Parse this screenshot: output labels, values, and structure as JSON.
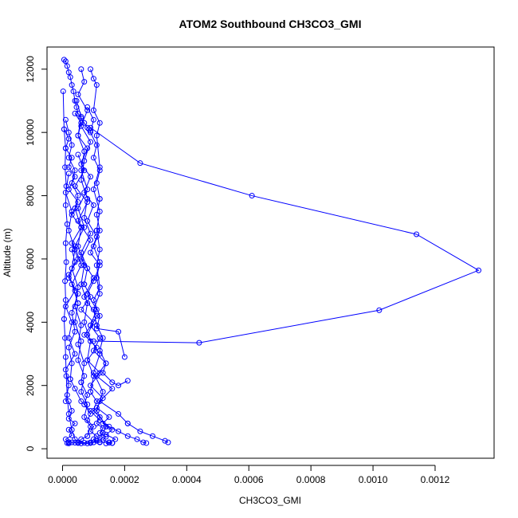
{
  "chart_data": {
    "type": "line",
    "title": "ATOM2 Southbound CH3CO3_GMI",
    "xlabel": "CH3CO3_GMI",
    "ylabel": "Altitude (m)",
    "xlim": [
      -5e-05,
      0.00139
    ],
    "ylim": [
      -300,
      12700
    ],
    "x_ticks": [
      0.0,
      0.0002,
      0.0004,
      0.0006,
      0.0008,
      0.001,
      0.0012
    ],
    "x_tick_labels": [
      "0.0000",
      "0.0002",
      "0.0004",
      "0.0006",
      "0.0008",
      "0.0010",
      "0.0012"
    ],
    "y_ticks": [
      0,
      2000,
      4000,
      6000,
      8000,
      10000,
      12000
    ],
    "y_tick_labels": [
      "0",
      "2000",
      "4000",
      "6000",
      "8000",
      "10000",
      "12000"
    ],
    "color": "#0000ff",
    "marker": "open-circle",
    "grid": false,
    "series": [
      {
        "x": [
          5e-06,
          1e-05,
          1.5e-05,
          2e-05,
          2.5e-05,
          3e-05,
          3.5e-05,
          4e-05,
          4.5e-05,
          5e-05,
          6e-05,
          7e-05,
          8e-05,
          8.5e-05,
          9e-05
        ],
        "y": [
          12300,
          12250,
          12100,
          11900,
          11750,
          11500,
          11300,
          11000,
          10800,
          10600,
          10450,
          10300,
          10150,
          10100,
          10050
        ]
      },
      {
        "x": [
          9e-05,
          0.00025,
          0.00061,
          0.00114,
          0.00134,
          0.00102,
          0.00044,
          0.0001
        ],
        "y": [
          10150,
          9030,
          8000,
          6780,
          5640,
          4380,
          3350,
          3400
        ]
      },
      {
        "x": [
          5e-06,
          2e-05,
          1e-05,
          3e-05,
          2e-05,
          4e-05,
          2e-05,
          5e-05,
          3e-05,
          6e-05,
          3e-05,
          5e-05,
          2e-05,
          4e-05,
          1e-05,
          3e-05,
          2e-05,
          4e-05,
          1e-05,
          2e-05,
          1e-05
        ],
        "y": [
          10100,
          9800,
          9500,
          9200,
          8900,
          8600,
          8200,
          7800,
          7400,
          7000,
          6500,
          6000,
          5500,
          5000,
          4500,
          4000,
          3500,
          3000,
          2500,
          2000,
          1500
        ]
      },
      {
        "x": [
          2e-05,
          3e-05,
          2e-05,
          4e-05,
          2e-05,
          3e-05,
          1e-05,
          2e-05,
          1.5e-05,
          2e-05
        ],
        "y": [
          1500,
          1200,
          950,
          800,
          600,
          420,
          300,
          200,
          180,
          170
        ]
      },
      {
        "x": [
          4e-05,
          6e-05,
          5e-05,
          8e-05,
          6e-05,
          9e-05,
          7e-05,
          0.0001,
          8e-05,
          0.00011,
          9e-05,
          0.00012,
          0.0001,
          8e-05,
          0.00011,
          9e-05
        ],
        "y": [
          10600,
          10300,
          9900,
          9500,
          9000,
          8600,
          8100,
          7700,
          7200,
          6700,
          6200,
          5800,
          5300,
          4900,
          4400,
          3900
        ]
      },
      {
        "x": [
          9e-05,
          0.00012,
          0.0001,
          0.00014,
          0.00011,
          0.00016,
          0.00012,
          0.00018,
          0.00021
        ],
        "y": [
          3900,
          3500,
          3100,
          2700,
          2300,
          1900,
          1500,
          1100,
          800
        ]
      },
      {
        "x": [
          0.00021,
          0.00025,
          0.00029,
          0.00033,
          0.00034
        ],
        "y": [
          800,
          550,
          400,
          250,
          200
        ]
      },
      {
        "x": [
          6e-05,
          7e-05,
          5e-05,
          8e-05,
          6e-05,
          9e-05,
          7e-05,
          6e-05,
          8e-05,
          7e-05,
          9e-05,
          6e-05,
          8e-05,
          7e-05
        ],
        "y": [
          12000,
          11600,
          11200,
          10700,
          10200,
          9700,
          9100,
          8500,
          7900,
          7300,
          6800,
          6200,
          5700,
          5200
        ]
      },
      {
        "x": [
          7e-05,
          9e-05,
          6e-05,
          0.0001,
          7e-05,
          0.00011,
          8e-05,
          0.00012,
          9e-05,
          0.00013,
          0.00011,
          0.00015,
          0.00013,
          0.00016,
          0.00014,
          0.00017,
          0.00015,
          0.00016,
          0.00014
        ],
        "y": [
          5200,
          4800,
          4400,
          4000,
          3600,
          3200,
          2800,
          2400,
          2000,
          1600,
          1300,
          1000,
          800,
          600,
          450,
          300,
          200,
          180,
          170
        ]
      },
      {
        "x": [
          9e-05,
          0.0001,
          0.00011,
          0.0001,
          0.00012,
          0.00011,
          0.00012,
          0.0001,
          0.00012,
          0.00011
        ],
        "y": [
          12000,
          11700,
          11500,
          10700,
          10300,
          9900,
          8900,
          8200,
          7500,
          6900
        ]
      },
      {
        "x": [
          0.00011,
          0.00012,
          0.00011,
          0.00012,
          0.0001,
          0.00012,
          0.00011,
          0.00018,
          0.0002
        ],
        "y": [
          6900,
          6300,
          5800,
          5100,
          4700,
          4200,
          3800,
          3700,
          2900
        ]
      },
      {
        "x": [
          3e-05,
          4e-05,
          2e-05,
          5e-05,
          3e-05,
          4e-05,
          2e-05,
          3e-05,
          2.5e-05
        ],
        "y": [
          6300,
          5900,
          5400,
          4900,
          4300,
          3700,
          3200,
          2700,
          2200
        ]
      },
      {
        "x": [
          2.5e-05,
          4e-05,
          6e-05,
          9e-05,
          0.00012,
          0.00015,
          0.00018,
          0.00021,
          0.00024,
          0.00026,
          0.00027
        ],
        "y": [
          2200,
          1900,
          1500,
          1200,
          900,
          700,
          550,
          400,
          300,
          200,
          180
        ]
      },
      {
        "x": [
          5e-05,
          7e-05,
          4e-05,
          8e-05,
          5e-05,
          9e-05,
          6e-05,
          0.0001,
          7e-05,
          0.00011,
          8e-05,
          0.00012,
          0.0001,
          0.00013,
          0.00011,
          0.00014
        ],
        "y": [
          9300,
          8800,
          8300,
          7800,
          7200,
          6600,
          6000,
          5400,
          4800,
          4200,
          3600,
          3000,
          2400,
          1800,
          1200,
          700
        ]
      },
      {
        "x": [
          0.00014,
          0.00013,
          0.00012,
          0.00011,
          0.0001,
          9e-05,
          8e-05,
          6e-05,
          5e-05,
          4e-05,
          3e-05,
          2e-05
        ],
        "y": [
          700,
          500,
          350,
          250,
          200,
          180,
          170,
          170,
          180,
          190,
          200,
          210
        ]
      },
      {
        "x": [
          2e-05,
          1e-05,
          3e-05,
          2e-05,
          4e-05,
          3e-05,
          5e-05,
          4e-05,
          6e-05,
          5e-05,
          7e-05,
          6e-05
        ],
        "y": [
          8700,
          8100,
          7500,
          6900,
          6300,
          5700,
          5100,
          4500,
          3900,
          3300,
          2700,
          2100
        ]
      },
      {
        "x": [
          6e-05,
          8e-05,
          7e-05,
          9e-05,
          8e-05,
          0.0001,
          9e-05,
          0.00011,
          0.0001,
          0.00012
        ],
        "y": [
          2100,
          1700,
          1400,
          1100,
          900,
          700,
          550,
          400,
          300,
          200
        ]
      },
      {
        "x": [
          1e-05,
          2e-05,
          3e-05,
          2e-05,
          4e-05,
          3e-05,
          5e-05,
          4e-05
        ],
        "y": [
          10400,
          10000,
          9600,
          9200,
          8800,
          8400,
          8000,
          7600
        ]
      },
      {
        "x": [
          4e-05,
          6e-05,
          5e-05,
          7e-05,
          6e-05,
          8e-05,
          7e-05,
          9e-05,
          8e-05,
          0.0001,
          9e-05
        ],
        "y": [
          7600,
          7000,
          6400,
          5800,
          5200,
          4600,
          4000,
          3400,
          2800,
          2300,
          1800
        ]
      },
      {
        "x": [
          9e-05,
          0.00011,
          0.0001,
          0.00012,
          0.00011,
          0.00013,
          0.00012,
          0.00014,
          0.00013,
          0.00015,
          0.00016
        ],
        "y": [
          1800,
          1500,
          1200,
          1000,
          800,
          650,
          500,
          380,
          280,
          200,
          180
        ]
      },
      {
        "x": [
          8e-05,
          0.0001,
          9e-05,
          0.00011,
          0.0001,
          0.00012,
          0.00011,
          0.00012
        ],
        "y": [
          10800,
          10400,
          10000,
          9600,
          9200,
          8800,
          8400,
          7900
        ]
      },
      {
        "x": [
          0.00012,
          0.00011,
          0.00012,
          0.0001,
          0.00012,
          0.00011,
          0.00012,
          0.0001,
          0.00011
        ],
        "y": [
          7900,
          7400,
          6900,
          6400,
          5900,
          5400,
          4900,
          4400,
          3900
        ]
      },
      {
        "x": [
          0.00011,
          0.00013,
          0.00012,
          0.00014,
          0.00013,
          0.00016,
          0.00018,
          0.00021
        ],
        "y": [
          3900,
          3500,
          3100,
          2700,
          2400,
          2100,
          2000,
          2150
        ]
      },
      {
        "x": [
          4.5e-05,
          6e-05,
          5e-05,
          7e-05,
          6e-05,
          8e-05,
          5e-05,
          7e-05,
          4e-05,
          6e-05,
          3e-05,
          5e-05
        ],
        "y": [
          11000,
          10500,
          9900,
          9400,
          8800,
          8200,
          7600,
          7000,
          6400,
          5800,
          5200,
          4600
        ]
      },
      {
        "x": [
          5e-05,
          4e-05,
          6e-05,
          5e-05,
          7e-05,
          6e-05,
          8e-05,
          7e-05,
          9e-05,
          8e-05
        ],
        "y": [
          4600,
          4000,
          3400,
          2800,
          2300,
          1800,
          1400,
          1000,
          700,
          400
        ]
      },
      {
        "x": [
          8e-05,
          6e-05,
          5e-05,
          7e-05,
          9e-05,
          0.00012,
          0.00015,
          0.00016
        ],
        "y": [
          400,
          300,
          200,
          190,
          200,
          210,
          190,
          180
        ]
      },
      {
        "x": [
          2e-06,
          5e-06,
          1e-05,
          8e-06,
          1.2e-05,
          1e-05,
          1.5e-05,
          1e-05,
          1.2e-05,
          8e-06,
          1e-05,
          5e-06
        ],
        "y": [
          11300,
          10100,
          9500,
          8900,
          8300,
          7700,
          7100,
          6500,
          5900,
          5300,
          4700,
          4100
        ]
      },
      {
        "x": [
          5e-06,
          8e-06,
          1e-05,
          1.2e-05,
          1.5e-05,
          2e-05,
          3e-05,
          4e-05,
          5e-05
        ],
        "y": [
          4100,
          3500,
          2900,
          2300,
          1700,
          1100,
          600,
          300,
          200
        ]
      }
    ]
  }
}
